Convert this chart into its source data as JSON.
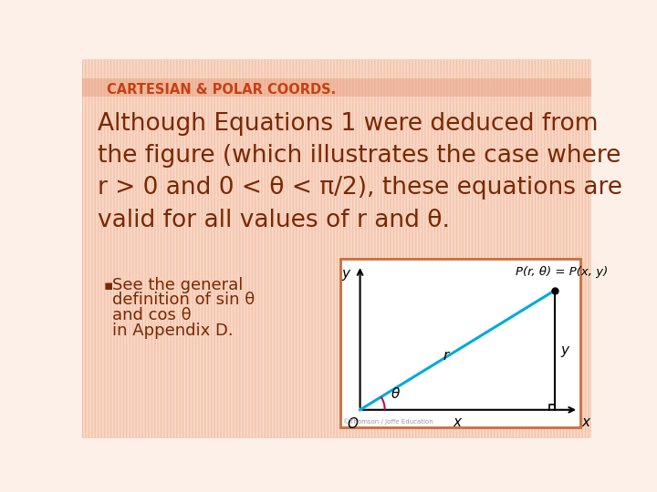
{
  "bg_top_color": "#fdf0e8",
  "bg_bottom_color": "#f0b090",
  "title": "CARTESIAN & POLAR COORDS.",
  "title_color": "#c84010",
  "title_fontsize": 10.5,
  "body_text_color": "#7a2800",
  "body_lines": [
    "Although Equations 1 were deduced from",
    "the figure (which illustrates the case where",
    "r > 0 and 0 < θ < π/2), these equations are",
    "valid for all values of r and θ."
  ],
  "bullet_text_lines": [
    "See the general",
    "definition of sin θ",
    "and cos θ",
    "in Appendix D."
  ],
  "bullet_color": "#7a2800",
  "diagram_box_color": "#c87040",
  "diagram_bg": "#ffffff",
  "diagram_line_color": "#00aadd",
  "diagram_axis_color": "#000000",
  "diagram_label_color": "#000000",
  "diagram_point_label": "P(r, θ) = P(x, y)",
  "diagram_theta_color": "#cc0055",
  "body_fontsize": 19,
  "bullet_fontsize": 13,
  "title_bar_color": "#e8a080"
}
